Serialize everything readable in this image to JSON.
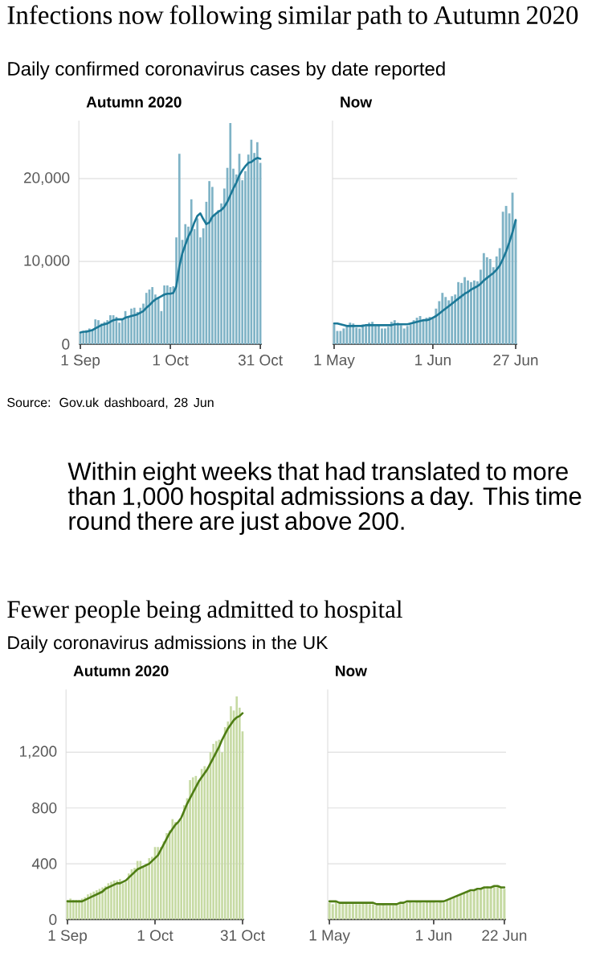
{
  "chart_data": [
    {
      "type": "other",
      "title": "Infections now following similar path to Autumn 2020",
      "subtitle": "Daily confirmed coronavirus cases by date reported"
    },
    {
      "type": "bar",
      "title": "Autumn 2020",
      "grid": "y",
      "ylim": [
        0,
        27000
      ],
      "yticks": [
        0,
        {
          "value": 10000,
          "label": "10,000"
        },
        {
          "value": 20000,
          "label": "20,000"
        }
      ],
      "categories": [
        "1 Sep",
        null,
        null,
        null,
        null,
        null,
        null,
        null,
        null,
        null,
        null,
        null,
        null,
        null,
        null,
        null,
        null,
        null,
        null,
        null,
        null,
        null,
        null,
        null,
        null,
        null,
        null,
        null,
        null,
        null,
        "1 Oct",
        null,
        null,
        null,
        null,
        null,
        null,
        null,
        null,
        null,
        null,
        null,
        null,
        null,
        null,
        null,
        null,
        null,
        null,
        null,
        null,
        null,
        null,
        null,
        null,
        null,
        null,
        null,
        null,
        null,
        "31 Oct"
      ],
      "series": [
        {
          "type": "bar",
          "color": "#7fb3c6",
          "values": [
            1300,
            1500,
            1700,
            1900,
            1800,
            3000,
            2900,
            2500,
            2700,
            2900,
            3500,
            3500,
            3300,
            2600,
            3100,
            4000,
            3400,
            4300,
            4400,
            3900,
            4400,
            4900,
            6200,
            6600,
            6900,
            6000,
            5700,
            4000,
            7100,
            7100,
            6900,
            7000,
            12900,
            23000,
            12600,
            14500,
            14200,
            17500,
            13900,
            15200,
            12900,
            14000,
            17200,
            19700,
            19000,
            15700,
            16200,
            17000,
            18800,
            21300,
            26700,
            21200,
            20500,
            23000,
            19800,
            20900,
            22900,
            24700,
            23100,
            24400,
            21900
          ]
        },
        {
          "type": "line",
          "color": "#1b7897",
          "values": [
            1400,
            1500,
            1500,
            1600,
            1700,
            1900,
            2100,
            2300,
            2400,
            2500,
            2700,
            2900,
            3000,
            3000,
            3000,
            3200,
            3300,
            3400,
            3500,
            3600,
            3800,
            4000,
            4400,
            4700,
            5100,
            5400,
            5600,
            5800,
            6000,
            6100,
            6100,
            6200,
            7000,
            9400,
            11000,
            12000,
            13000,
            13700,
            14700,
            15500,
            15800,
            15100,
            14500,
            14700,
            15400,
            15700,
            16000,
            16200,
            16600,
            17200,
            18000,
            18800,
            19500,
            20400,
            21000,
            21500,
            21900,
            22000,
            22300,
            22500,
            22400
          ]
        }
      ]
    },
    {
      "type": "bar",
      "title": "Now",
      "grid": "y",
      "tick_labels": "x",
      "ylim": [
        0,
        27000
      ],
      "yticks": [
        0,
        10000,
        20000
      ],
      "categories": [
        "1 May",
        null,
        null,
        null,
        null,
        null,
        null,
        null,
        null,
        null,
        null,
        null,
        null,
        null,
        null,
        null,
        null,
        null,
        null,
        null,
        null,
        null,
        null,
        null,
        null,
        null,
        null,
        null,
        null,
        null,
        null,
        "1 Jun",
        null,
        null,
        null,
        null,
        null,
        null,
        null,
        null,
        null,
        null,
        null,
        null,
        null,
        null,
        null,
        null,
        null,
        null,
        null,
        null,
        null,
        null,
        null,
        null,
        null,
        "27 Jun"
      ],
      "series": [
        {
          "type": "bar",
          "color": "#7fb3c6",
          "values": [
            2400,
            1600,
            1600,
            1900,
            2300,
            2600,
            2500,
            2000,
            1900,
            2400,
            2200,
            2600,
            2700,
            2200,
            2300,
            1900,
            1900,
            2100,
            2700,
            2900,
            2600,
            2300,
            1900,
            2200,
            2400,
            2900,
            3200,
            3400,
            3000,
            3200,
            3300,
            3200,
            4300,
            5200,
            6200,
            5700,
            5300,
            5800,
            6000,
            7500,
            7400,
            8100,
            7700,
            7500,
            7700,
            7600,
            9000,
            11000,
            10500,
            10300,
            9300,
            10600,
            11600,
            16000,
            16700,
            15800,
            18300,
            15000
          ]
        },
        {
          "type": "line",
          "color": "#1b7897",
          "values": [
            2500,
            2500,
            2400,
            2300,
            2200,
            2200,
            2200,
            2200,
            2200,
            2200,
            2300,
            2300,
            2300,
            2300,
            2300,
            2300,
            2300,
            2300,
            2300,
            2400,
            2400,
            2400,
            2400,
            2400,
            2500,
            2600,
            2700,
            2800,
            2900,
            2900,
            3000,
            3200,
            3400,
            3700,
            4000,
            4300,
            4600,
            4900,
            5200,
            5500,
            5800,
            6100,
            6300,
            6600,
            6800,
            7000,
            7300,
            7700,
            8000,
            8300,
            8600,
            9000,
            9500,
            10300,
            11200,
            12300,
            13500,
            15000
          ]
        }
      ]
    },
    {
      "type": "other",
      "annotations": [
        "Source: Gov.uk dashboard, 28 Jun",
        "Within eight weeks that had translated to more than 1,000 hospital admissions a day. This time round there are just above 200."
      ]
    },
    {
      "type": "other",
      "title": "Fewer people being admitted to hospital",
      "subtitle": "Daily coronavirus admissions in the UK"
    },
    {
      "type": "bar",
      "title": "Autumn 2020",
      "grid": "y",
      "ylim": [
        0,
        1650
      ],
      "yticks": [
        0,
        400,
        800,
        {
          "value": 1200,
          "label": "1,200"
        }
      ],
      "categories": [
        "1 Sep",
        null,
        null,
        null,
        null,
        null,
        null,
        null,
        null,
        null,
        null,
        null,
        null,
        null,
        null,
        null,
        null,
        null,
        null,
        null,
        null,
        null,
        null,
        null,
        null,
        null,
        null,
        null,
        null,
        null,
        "1 Oct",
        null,
        null,
        null,
        null,
        null,
        null,
        null,
        null,
        null,
        null,
        null,
        null,
        null,
        null,
        null,
        null,
        null,
        null,
        null,
        null,
        null,
        null,
        null,
        null,
        null,
        null,
        null,
        null,
        null,
        "31 Oct"
      ],
      "series": [
        {
          "type": "bar",
          "color": "#c6daa3",
          "values": [
            140,
            150,
            140,
            140,
            140,
            150,
            160,
            180,
            190,
            200,
            210,
            220,
            230,
            240,
            260,
            270,
            280,
            280,
            290,
            260,
            270,
            330,
            360,
            370,
            420,
            420,
            380,
            400,
            440,
            450,
            520,
            520,
            520,
            560,
            620,
            640,
            720,
            700,
            700,
            720,
            820,
            870,
            1000,
            1020,
            1030,
            1000,
            1080,
            1100,
            1090,
            1200,
            1260,
            1280,
            1290,
            1200,
            1380,
            1420,
            1530,
            1500,
            1600,
            1520,
            1350
          ]
        },
        {
          "type": "line",
          "color": "#4e7d14",
          "values": [
            130,
            130,
            130,
            130,
            130,
            130,
            140,
            150,
            160,
            170,
            180,
            190,
            200,
            220,
            230,
            240,
            250,
            260,
            260,
            270,
            280,
            300,
            320,
            340,
            360,
            370,
            380,
            390,
            400,
            420,
            440,
            460,
            500,
            540,
            580,
            620,
            650,
            680,
            700,
            730,
            780,
            830,
            870,
            910,
            950,
            990,
            1020,
            1050,
            1080,
            1120,
            1160,
            1200,
            1240,
            1290,
            1330,
            1370,
            1400,
            1430,
            1450,
            1460,
            1480
          ]
        }
      ]
    },
    {
      "type": "bar",
      "title": "Now",
      "grid": "y",
      "tick_labels": "x",
      "ylim": [
        0,
        1650
      ],
      "yticks": [
        0,
        400,
        800,
        1200
      ],
      "categories": [
        "1 May",
        null,
        null,
        null,
        null,
        null,
        null,
        null,
        null,
        null,
        null,
        null,
        null,
        null,
        null,
        null,
        null,
        null,
        null,
        null,
        null,
        null,
        null,
        null,
        null,
        null,
        null,
        null,
        null,
        null,
        null,
        "1 Jun",
        null,
        null,
        null,
        null,
        null,
        null,
        null,
        null,
        null,
        null,
        null,
        null,
        null,
        null,
        null,
        null,
        null,
        null,
        null,
        null,
        "22 Jun"
      ],
      "series": [
        {
          "type": "bar",
          "color": "#c6daa3",
          "values": [
            120,
            110,
            130,
            120,
            120,
            120,
            110,
            120,
            110,
            110,
            120,
            120,
            110,
            110,
            100,
            100,
            110,
            100,
            100,
            100,
            110,
            120,
            120,
            120,
            130,
            120,
            130,
            130,
            120,
            130,
            130,
            130,
            120,
            130,
            120,
            140,
            150,
            160,
            170,
            180,
            190,
            200,
            200,
            210,
            210,
            220,
            230,
            240,
            230,
            240,
            240,
            230,
            220
          ]
        },
        {
          "type": "line",
          "color": "#4e7d14",
          "values": [
            130,
            130,
            130,
            120,
            120,
            120,
            120,
            120,
            120,
            120,
            120,
            120,
            120,
            120,
            110,
            110,
            110,
            110,
            110,
            110,
            110,
            120,
            120,
            130,
            130,
            130,
            130,
            130,
            130,
            130,
            130,
            130,
            130,
            130,
            130,
            140,
            150,
            160,
            170,
            180,
            190,
            200,
            210,
            210,
            220,
            220,
            230,
            230,
            230,
            240,
            240,
            230,
            230
          ]
        }
      ]
    }
  ]
}
